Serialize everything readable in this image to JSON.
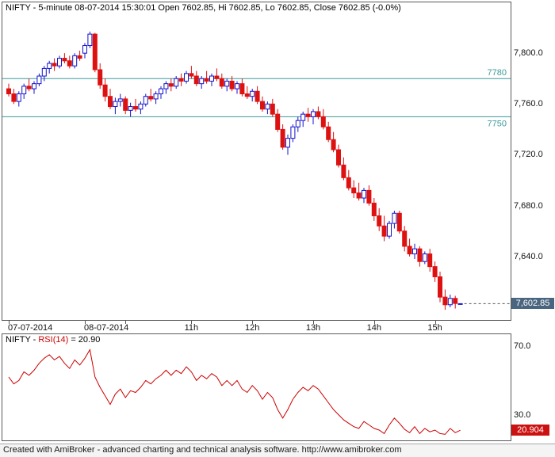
{
  "price_pane": {
    "close_badge": {
      "label": "7,602.85"
    }
  },
  "rsi_pane": {
    "title_symbol": "NIFTY - ",
    "title_indicator": "RSI(14)",
    "title_value": " = 20.90",
    "badge": {
      "label": "20.904"
    }
  },
  "footer": {
    "text": "Created with AmiBroker - advanced charting and technical analysis software. http://www.amibroker.com"
  },
  "chart_data": [
    {
      "type": "candlestick",
      "symbol": "NIFTY",
      "interval": "5-minute",
      "title": "NIFTY - 5-minute 08-07-2014 15:30:01 Open 7602.85, Hi 7602.85, Lo 7602.85, Close 7602.85 (-0.0%)",
      "last_bar": {
        "datetime": "08-07-2014 15:30:01",
        "open": 7602.85,
        "high": 7602.85,
        "low": 7602.85,
        "close": 7602.85,
        "change": "-0.0%"
      },
      "ylim": [
        7590,
        7840
      ],
      "colors": {
        "up": "#1313cc",
        "down": "#de1111",
        "close_line": "#555555"
      },
      "y_ticks": [
        {
          "value": 7800,
          "label": "7,800.0"
        },
        {
          "value": 7760,
          "label": "7,760.0"
        },
        {
          "value": 7720,
          "label": "7,720.0"
        },
        {
          "value": 7680,
          "label": "7,680.0"
        },
        {
          "value": 7640,
          "label": "7,640.0"
        }
      ],
      "levels": [
        {
          "value": 7780,
          "label": "7780",
          "color": "#3d9a9a",
          "label_pos": "above"
        },
        {
          "value": 7750,
          "label": "7750",
          "color": "#3d9a9a",
          "label_pos": "below"
        }
      ],
      "x_ticks": [
        {
          "index": 0,
          "label": "07-07-2014",
          "align": "left"
        },
        {
          "index": 15,
          "label": "08-07-2014",
          "align": "left"
        },
        {
          "index": 23,
          "label": "",
          "align": "center"
        },
        {
          "index": 36,
          "label": "11h",
          "align": "center"
        },
        {
          "index": 48,
          "label": "12h",
          "align": "center"
        },
        {
          "index": 60,
          "label": "13h",
          "align": "center"
        },
        {
          "index": 72,
          "label": "14h",
          "align": "center"
        },
        {
          "index": 84,
          "label": "15h",
          "align": "center"
        }
      ],
      "ohlc": [
        [
          7772,
          7776,
          7766,
          7768
        ],
        [
          7768,
          7772,
          7760,
          7762
        ],
        [
          7762,
          7770,
          7758,
          7768
        ],
        [
          7768,
          7776,
          7764,
          7774
        ],
        [
          7774,
          7780,
          7770,
          7772
        ],
        [
          7772,
          7778,
          7768,
          7776
        ],
        [
          7776,
          7784,
          7774,
          7782
        ],
        [
          7782,
          7790,
          7778,
          7788
        ],
        [
          7788,
          7794,
          7784,
          7792
        ],
        [
          7792,
          7796,
          7786,
          7790
        ],
        [
          7790,
          7798,
          7788,
          7796
        ],
        [
          7796,
          7800,
          7792,
          7794
        ],
        [
          7794,
          7798,
          7788,
          7790
        ],
        [
          7790,
          7800,
          7788,
          7798
        ],
        [
          7798,
          7802,
          7794,
          7796
        ],
        [
          7800,
          7808,
          7796,
          7806
        ],
        [
          7806,
          7817,
          7804,
          7815
        ],
        [
          7815,
          7816,
          7785,
          7787
        ],
        [
          7787,
          7792,
          7772,
          7775
        ],
        [
          7775,
          7780,
          7762,
          7766
        ],
        [
          7766,
          7772,
          7756,
          7758
        ],
        [
          7758,
          7765,
          7752,
          7762
        ],
        [
          7762,
          7768,
          7758,
          7764
        ],
        [
          7764,
          7766,
          7752,
          7755
        ],
        [
          7755,
          7761,
          7750,
          7758
        ],
        [
          7758,
          7764,
          7754,
          7756
        ],
        [
          7756,
          7762,
          7752,
          7760
        ],
        [
          7760,
          7768,
          7758,
          7766
        ],
        [
          7766,
          7772,
          7762,
          7764
        ],
        [
          7764,
          7770,
          7760,
          7768
        ],
        [
          7768,
          7774,
          7764,
          7772
        ],
        [
          7772,
          7778,
          7768,
          7776
        ],
        [
          7776,
          7780,
          7770,
          7774
        ],
        [
          7774,
          7782,
          7772,
          7780
        ],
        [
          7780,
          7784,
          7774,
          7778
        ],
        [
          7778,
          7786,
          7776,
          7784
        ],
        [
          7784,
          7790,
          7780,
          7782
        ],
        [
          7782,
          7786,
          7774,
          7776
        ],
        [
          7776,
          7782,
          7772,
          7780
        ],
        [
          7780,
          7786,
          7776,
          7778
        ],
        [
          7778,
          7784,
          7774,
          7782
        ],
        [
          7782,
          7788,
          7778,
          7780
        ],
        [
          7780,
          7784,
          7772,
          7774
        ],
        [
          7774,
          7780,
          7770,
          7778
        ],
        [
          7778,
          7782,
          7770,
          7772
        ],
        [
          7772,
          7778,
          7768,
          7776
        ],
        [
          7776,
          7780,
          7766,
          7768
        ],
        [
          7768,
          7774,
          7764,
          7766
        ],
        [
          7766,
          7772,
          7762,
          7770
        ],
        [
          7770,
          7774,
          7760,
          7762
        ],
        [
          7762,
          7766,
          7754,
          7756
        ],
        [
          7756,
          7762,
          7752,
          7760
        ],
        [
          7760,
          7764,
          7750,
          7752
        ],
        [
          7752,
          7756,
          7738,
          7740
        ],
        [
          7740,
          7744,
          7724,
          7726
        ],
        [
          7726,
          7736,
          7720,
          7733
        ],
        [
          7733,
          7744,
          7730,
          7742
        ],
        [
          7742,
          7750,
          7738,
          7747
        ],
        [
          7747,
          7754,
          7742,
          7752
        ],
        [
          7752,
          7757,
          7746,
          7750
        ],
        [
          7750,
          7756,
          7744,
          7754
        ],
        [
          7754,
          7758,
          7748,
          7750
        ],
        [
          7750,
          7756,
          7740,
          7742
        ],
        [
          7742,
          7746,
          7730,
          7732
        ],
        [
          7732,
          7738,
          7722,
          7724
        ],
        [
          7724,
          7728,
          7710,
          7712
        ],
        [
          7712,
          7718,
          7700,
          7702
        ],
        [
          7702,
          7708,
          7692,
          7694
        ],
        [
          7694,
          7700,
          7686,
          7690
        ],
        [
          7690,
          7698,
          7684,
          7686
        ],
        [
          7686,
          7694,
          7682,
          7692
        ],
        [
          7692,
          7696,
          7680,
          7682
        ],
        [
          7682,
          7686,
          7668,
          7672
        ],
        [
          7672,
          7678,
          7660,
          7664
        ],
        [
          7664,
          7672,
          7652,
          7656
        ],
        [
          7656,
          7668,
          7654,
          7666
        ],
        [
          7666,
          7676,
          7662,
          7674
        ],
        [
          7674,
          7676,
          7658,
          7660
        ],
        [
          7660,
          7664,
          7644,
          7648
        ],
        [
          7648,
          7654,
          7640,
          7642
        ],
        [
          7642,
          7650,
          7638,
          7646
        ],
        [
          7646,
          7648,
          7632,
          7636
        ],
        [
          7636,
          7644,
          7634,
          7642
        ],
        [
          7642,
          7646,
          7628,
          7632
        ],
        [
          7632,
          7636,
          7620,
          7624
        ],
        [
          7624,
          7628,
          7604,
          7608
        ],
        [
          7608,
          7614,
          7598,
          7602
        ],
        [
          7602,
          7610,
          7600,
          7607
        ],
        [
          7607,
          7609,
          7599,
          7603
        ],
        [
          7602.85,
          7602.85,
          7602.85,
          7602.85
        ]
      ]
    },
    {
      "type": "line",
      "name": "RSI(14)",
      "current": 20.904,
      "color": "#cc0000",
      "ylim": [
        15,
        77
      ],
      "y_ticks": [
        {
          "value": 70,
          "label": "70.0"
        },
        {
          "value": 30,
          "label": "30.0"
        }
      ],
      "values": [
        52,
        48,
        50,
        55,
        53,
        56,
        60,
        63,
        65,
        62,
        64,
        60,
        57,
        62,
        59,
        63,
        68,
        52,
        46,
        41,
        36,
        42,
        45,
        40,
        44,
        43,
        46,
        50,
        48,
        51,
        53,
        56,
        53,
        56,
        54,
        58,
        55,
        50,
        53,
        51,
        54,
        52,
        47,
        50,
        47,
        50,
        45,
        43,
        47,
        44,
        39,
        43,
        40,
        33,
        28,
        33,
        39,
        43,
        46,
        44,
        47,
        45,
        41,
        37,
        33,
        30,
        27,
        25,
        23,
        22,
        26,
        24,
        22,
        21,
        19,
        24,
        28,
        25,
        21.5,
        19.5,
        23,
        19,
        22,
        20,
        21,
        19,
        18.5,
        22,
        19.5,
        20.904
      ]
    }
  ]
}
